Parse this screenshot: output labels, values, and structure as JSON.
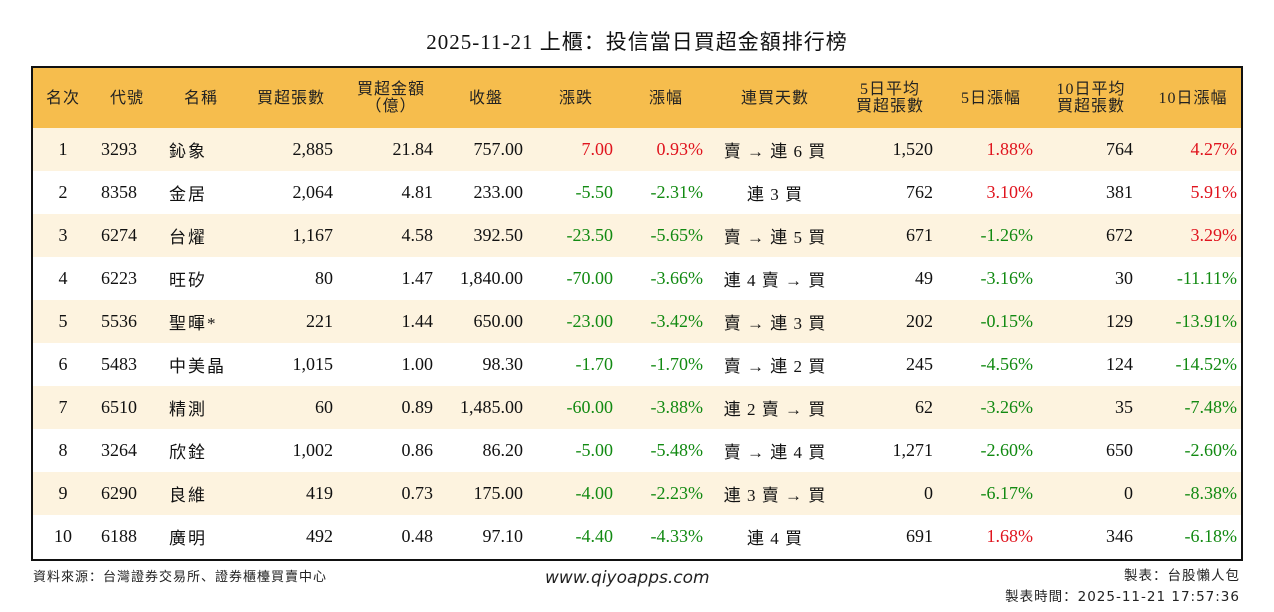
{
  "title": "2025-11-21 上櫃：投信當日買超金額排行榜",
  "colors": {
    "header_bg": "#f6bd4d",
    "row_odd_bg": "#fdf3df",
    "row_even_bg": "#ffffff",
    "up": "#e0141e",
    "down": "#128a12"
  },
  "table": {
    "headers": [
      {
        "line1": "名次",
        "line2": ""
      },
      {
        "line1": "代號",
        "line2": ""
      },
      {
        "line1": "名稱",
        "line2": ""
      },
      {
        "line1": "買超張數",
        "line2": ""
      },
      {
        "line1": "買超金額",
        "line2": "（億）"
      },
      {
        "line1": "收盤",
        "line2": ""
      },
      {
        "line1": "漲跌",
        "line2": ""
      },
      {
        "line1": "漲幅",
        "line2": ""
      },
      {
        "line1": "連買天數",
        "line2": ""
      },
      {
        "line1": "5日平均",
        "line2": "買超張數"
      },
      {
        "line1": "5日漲幅",
        "line2": ""
      },
      {
        "line1": "10日平均",
        "line2": "買超張數"
      },
      {
        "line1": "10日漲幅",
        "line2": ""
      }
    ],
    "rows": [
      {
        "rank": "1",
        "code": "3293",
        "name": "鈊象",
        "net_buy_lots": "2,885",
        "net_buy_amount": "21.84",
        "close": "757.00",
        "change": "7.00",
        "change_dir": "up",
        "pct": "0.93%",
        "pct_dir": "up",
        "streak": "賣 → 連 6 買",
        "avg5_lots": "1,520",
        "pct5": "1.88%",
        "pct5_dir": "up",
        "avg10_lots": "764",
        "pct10": "4.27%",
        "pct10_dir": "up"
      },
      {
        "rank": "2",
        "code": "8358",
        "name": "金居",
        "net_buy_lots": "2,064",
        "net_buy_amount": "4.81",
        "close": "233.00",
        "change": "-5.50",
        "change_dir": "down",
        "pct": "-2.31%",
        "pct_dir": "down",
        "streak": "連 3 買",
        "avg5_lots": "762",
        "pct5": "3.10%",
        "pct5_dir": "up",
        "avg10_lots": "381",
        "pct10": "5.91%",
        "pct10_dir": "up"
      },
      {
        "rank": "3",
        "code": "6274",
        "name": "台燿",
        "net_buy_lots": "1,167",
        "net_buy_amount": "4.58",
        "close": "392.50",
        "change": "-23.50",
        "change_dir": "down",
        "pct": "-5.65%",
        "pct_dir": "down",
        "streak": "賣 → 連 5 買",
        "avg5_lots": "671",
        "pct5": "-1.26%",
        "pct5_dir": "down",
        "avg10_lots": "672",
        "pct10": "3.29%",
        "pct10_dir": "up"
      },
      {
        "rank": "4",
        "code": "6223",
        "name": "旺矽",
        "net_buy_lots": "80",
        "net_buy_amount": "1.47",
        "close": "1,840.00",
        "change": "-70.00",
        "change_dir": "down",
        "pct": "-3.66%",
        "pct_dir": "down",
        "streak": "連 4 賣 → 買",
        "avg5_lots": "49",
        "pct5": "-3.16%",
        "pct5_dir": "down",
        "avg10_lots": "30",
        "pct10": "-11.11%",
        "pct10_dir": "down"
      },
      {
        "rank": "5",
        "code": "5536",
        "name": "聖暉*",
        "net_buy_lots": "221",
        "net_buy_amount": "1.44",
        "close": "650.00",
        "change": "-23.00",
        "change_dir": "down",
        "pct": "-3.42%",
        "pct_dir": "down",
        "streak": "賣 → 連 3 買",
        "avg5_lots": "202",
        "pct5": "-0.15%",
        "pct5_dir": "down",
        "avg10_lots": "129",
        "pct10": "-13.91%",
        "pct10_dir": "down"
      },
      {
        "rank": "6",
        "code": "5483",
        "name": "中美晶",
        "net_buy_lots": "1,015",
        "net_buy_amount": "1.00",
        "close": "98.30",
        "change": "-1.70",
        "change_dir": "down",
        "pct": "-1.70%",
        "pct_dir": "down",
        "streak": "賣 → 連 2 買",
        "avg5_lots": "245",
        "pct5": "-4.56%",
        "pct5_dir": "down",
        "avg10_lots": "124",
        "pct10": "-14.52%",
        "pct10_dir": "down"
      },
      {
        "rank": "7",
        "code": "6510",
        "name": "精測",
        "net_buy_lots": "60",
        "net_buy_amount": "0.89",
        "close": "1,485.00",
        "change": "-60.00",
        "change_dir": "down",
        "pct": "-3.88%",
        "pct_dir": "down",
        "streak": "連 2 賣 → 買",
        "avg5_lots": "62",
        "pct5": "-3.26%",
        "pct5_dir": "down",
        "avg10_lots": "35",
        "pct10": "-7.48%",
        "pct10_dir": "down"
      },
      {
        "rank": "8",
        "code": "3264",
        "name": "欣銓",
        "net_buy_lots": "1,002",
        "net_buy_amount": "0.86",
        "close": "86.20",
        "change": "-5.00",
        "change_dir": "down",
        "pct": "-5.48%",
        "pct_dir": "down",
        "streak": "賣 → 連 4 買",
        "avg5_lots": "1,271",
        "pct5": "-2.60%",
        "pct5_dir": "down",
        "avg10_lots": "650",
        "pct10": "-2.60%",
        "pct10_dir": "down"
      },
      {
        "rank": "9",
        "code": "6290",
        "name": "良維",
        "net_buy_lots": "419",
        "net_buy_amount": "0.73",
        "close": "175.00",
        "change": "-4.00",
        "change_dir": "down",
        "pct": "-2.23%",
        "pct_dir": "down",
        "streak": "連 3 賣 → 買",
        "avg5_lots": "0",
        "pct5": "-6.17%",
        "pct5_dir": "down",
        "avg10_lots": "0",
        "pct10": "-8.38%",
        "pct10_dir": "down"
      },
      {
        "rank": "10",
        "code": "6188",
        "name": "廣明",
        "net_buy_lots": "492",
        "net_buy_amount": "0.48",
        "close": "97.10",
        "change": "-4.40",
        "change_dir": "down",
        "pct": "-4.33%",
        "pct_dir": "down",
        "streak": "連 4 買",
        "avg5_lots": "691",
        "pct5": "1.68%",
        "pct5_dir": "up",
        "avg10_lots": "346",
        "pct10": "-6.18%",
        "pct10_dir": "down"
      }
    ]
  },
  "footer": {
    "source": "資料來源：台灣證券交易所、證券櫃檯買賣中心",
    "website": "www.qiyoapps.com",
    "author": "製表：台股懶人包",
    "generated_at": "製表時間：2025-11-21 17:57:36"
  }
}
